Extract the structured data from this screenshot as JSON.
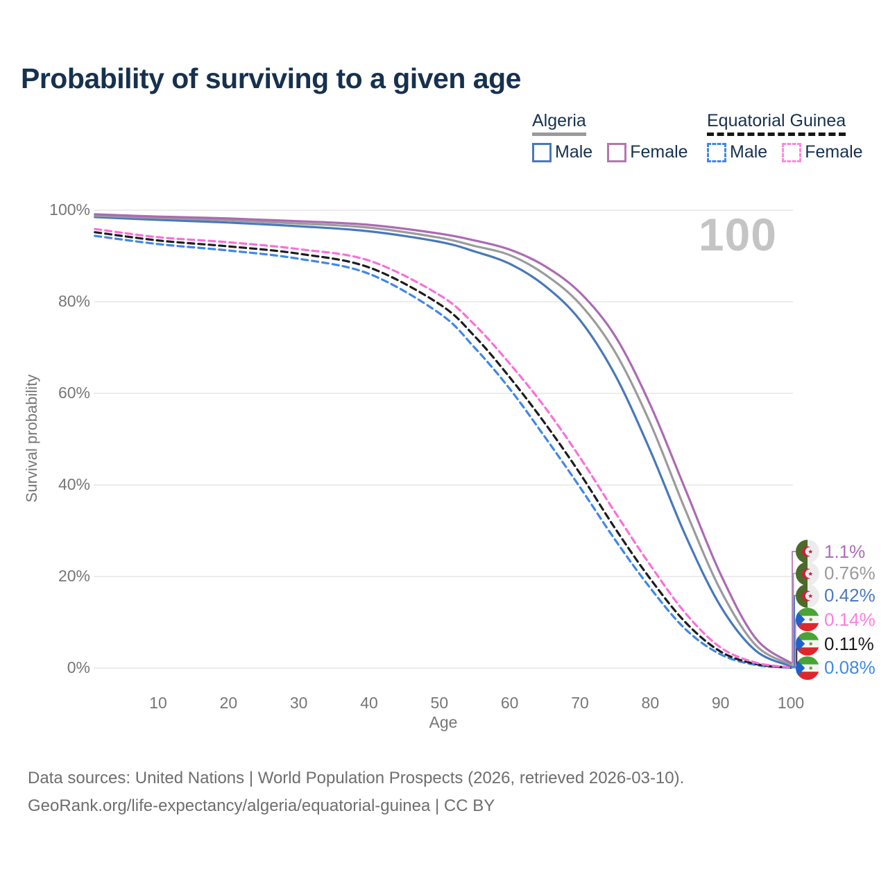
{
  "page": {
    "title": "Probability of surviving to a given age",
    "watermark": "100"
  },
  "legend": {
    "groups": [
      {
        "title": "Algeria",
        "line_style": "solid",
        "items": [
          {
            "label": "Male",
            "color": "#4878bc"
          },
          {
            "label": "Female",
            "color": "#b277ae"
          }
        ]
      },
      {
        "title": "Equatorial Guinea",
        "line_style": "dashed",
        "items": [
          {
            "label": "Male",
            "color": "#4187e8"
          },
          {
            "label": "Female",
            "color": "#ff87e0"
          }
        ]
      }
    ]
  },
  "chart_data": {
    "type": "line",
    "title": "Probability of surviving to a given age",
    "xlabel": "Age",
    "ylabel": "Survival probability",
    "xlim": [
      1,
      100
    ],
    "ylim": [
      0,
      100
    ],
    "grid": "horizontal",
    "x_ticks": [
      {
        "value": 10,
        "label": "10"
      },
      {
        "value": 20,
        "label": "20"
      },
      {
        "value": 30,
        "label": "30"
      },
      {
        "value": 40,
        "label": "40"
      },
      {
        "value": 50,
        "label": "50"
      },
      {
        "value": 60,
        "label": "60"
      },
      {
        "value": 70,
        "label": "70"
      },
      {
        "value": 80,
        "label": "80"
      },
      {
        "value": 90,
        "label": "90"
      },
      {
        "value": 100,
        "label": "100"
      }
    ],
    "y_ticks": [
      {
        "value": 0,
        "label": "0%"
      },
      {
        "value": 20,
        "label": "20%"
      },
      {
        "value": 40,
        "label": "40%"
      },
      {
        "value": 60,
        "label": "60%"
      },
      {
        "value": 80,
        "label": "80%"
      },
      {
        "value": 100,
        "label": "100%"
      }
    ],
    "x": [
      1,
      10,
      20,
      30,
      40,
      50,
      55,
      60,
      65,
      70,
      75,
      80,
      85,
      90,
      95,
      100
    ],
    "series": [
      {
        "name": "Algeria — Female",
        "country": "algeria",
        "sex": "female",
        "style": "solid",
        "color": "#ac6ab4",
        "label_color": "#ae6cb8",
        "end_label": "1.1%",
        "values": [
          99.1,
          98.6,
          98.2,
          97.6,
          96.8,
          94.9,
          93.4,
          91.4,
          87.8,
          82.0,
          72.5,
          57.5,
          39.0,
          20.5,
          6.5,
          1.1
        ]
      },
      {
        "name": "Algeria — Both sexes",
        "country": "algeria",
        "sex": "both",
        "style": "solid",
        "color": "#9b9b9b",
        "label_color": "#9a9a9a",
        "end_label": "0.76%",
        "values": [
          98.8,
          98.3,
          97.8,
          97.1,
          96.2,
          94.0,
          92.2,
          90.2,
          86.0,
          79.5,
          69.0,
          53.5,
          34.5,
          17.0,
          5.0,
          0.76
        ]
      },
      {
        "name": "Algeria — Male",
        "country": "algeria",
        "sex": "male",
        "style": "solid",
        "color": "#4878bc",
        "label_color": "#4a7abf",
        "end_label": "0.42%",
        "values": [
          98.5,
          97.9,
          97.3,
          96.5,
          95.4,
          93.1,
          91.0,
          88.3,
          83.5,
          76.0,
          64.0,
          47.5,
          29.0,
          13.5,
          3.8,
          0.42
        ]
      },
      {
        "name": "Equatorial Guinea — Female",
        "country": "equatorial-guinea",
        "sex": "female",
        "style": "dashed",
        "color": "#f96fd9",
        "label_color": "#ff7ce4",
        "end_label": "0.14%",
        "values": [
          95.9,
          94.1,
          93.0,
          91.5,
          89.0,
          81.5,
          75.0,
          66.5,
          57.0,
          46.0,
          34.0,
          22.5,
          12.0,
          4.5,
          1.2,
          0.14
        ]
      },
      {
        "name": "Equatorial Guinea — Both sexes",
        "country": "equatorial-guinea",
        "sex": "both",
        "style": "dashed",
        "color": "#1d1d1d",
        "label_color": "#1a1a1a",
        "end_label": "0.11%",
        "values": [
          95.2,
          93.4,
          92.1,
          90.5,
          87.5,
          79.5,
          72.5,
          63.5,
          53.5,
          42.5,
          30.5,
          19.5,
          10.0,
          3.6,
          0.9,
          0.11
        ]
      },
      {
        "name": "Equatorial Guinea — Male",
        "country": "equatorial-guinea",
        "sex": "male",
        "style": "dashed",
        "color": "#3f87e8",
        "label_color": "#4089e8",
        "end_label": "0.08%",
        "values": [
          94.4,
          92.6,
          91.2,
          89.4,
          86.1,
          77.5,
          70.0,
          61.0,
          50.5,
          39.5,
          28.0,
          17.5,
          8.5,
          3.0,
          0.7,
          0.08
        ]
      }
    ]
  },
  "footer": {
    "line1": "Data sources: United Nations | World Population Prospects (2026, retrieved 2026-03-10).",
    "line2": "GeoRank.org/life-expectancy/algeria/equatorial-guinea | CC BY"
  }
}
